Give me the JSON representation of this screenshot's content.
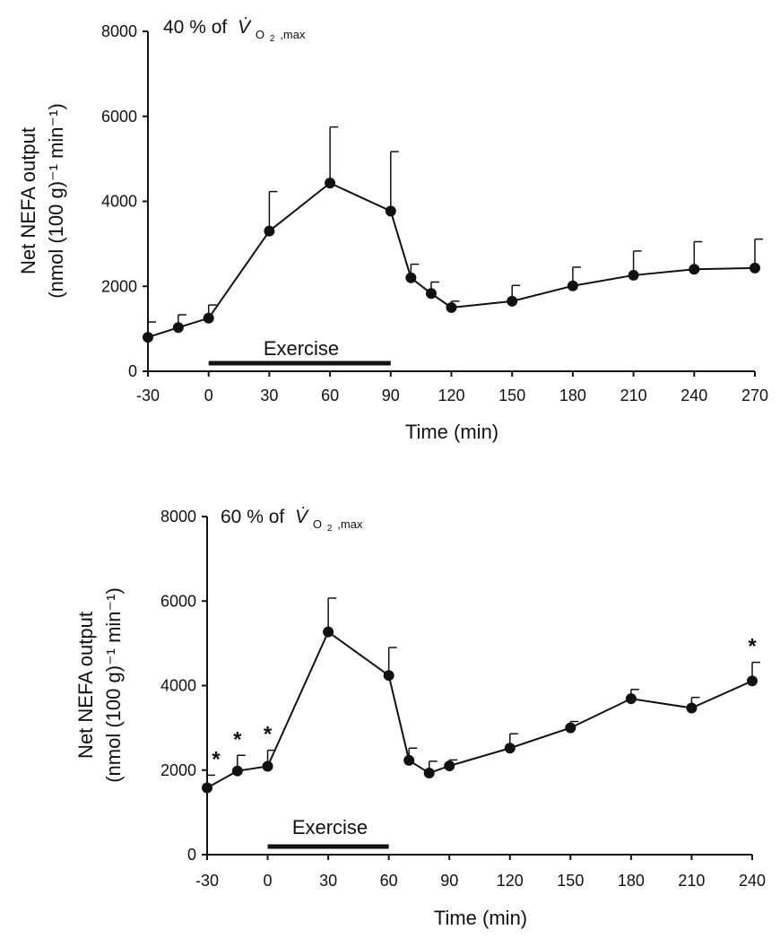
{
  "chart_data": [
    {
      "type": "line",
      "title_prefix": "40 % of",
      "title_symbol": "V̇",
      "title_subscript_main": "O",
      "title_subscript_sub": "2",
      "title_subscript_suffix": ",max",
      "xlabel": "Time (min)",
      "ylabel_line1": "Net NEFA output",
      "ylabel_line2": "(nmol (100 g)⁻¹ min⁻¹)",
      "x_ticks": [
        -30,
        0,
        30,
        60,
        90,
        120,
        150,
        180,
        210,
        240,
        270
      ],
      "y_ticks": [
        0,
        2000,
        4000,
        6000,
        8000
      ],
      "xlim": [
        -30,
        270
      ],
      "ylim": [
        0,
        8000
      ],
      "exercise_label": "Exercise",
      "exercise_range": [
        0,
        90
      ],
      "series": [
        {
          "name": "Net NEFA output",
          "x": [
            -30,
            -15,
            0,
            30,
            60,
            90,
            100,
            110,
            120,
            150,
            180,
            210,
            240,
            270
          ],
          "y": [
            800,
            1030,
            1250,
            3300,
            4430,
            3770,
            2200,
            1830,
            1500,
            1650,
            2010,
            2260,
            2400,
            2430
          ],
          "err": [
            360,
            300,
            310,
            930,
            1320,
            1400,
            320,
            270,
            150,
            370,
            440,
            570,
            650,
            680
          ]
        }
      ],
      "significance_x": []
    },
    {
      "type": "line",
      "title_prefix": "60 % of",
      "title_symbol": "V̇",
      "title_subscript_main": "O",
      "title_subscript_sub": "2",
      "title_subscript_suffix": ",max",
      "xlabel": "Time (min)",
      "ylabel_line1": "Net NEFA output",
      "ylabel_line2": "(nmol (100 g)⁻¹ min⁻¹)",
      "x_ticks": [
        -30,
        0,
        30,
        60,
        90,
        120,
        150,
        180,
        210,
        240
      ],
      "y_ticks": [
        0,
        2000,
        4000,
        6000,
        8000
      ],
      "xlim": [
        -30,
        240
      ],
      "ylim": [
        0,
        8000
      ],
      "exercise_label": "Exercise",
      "exercise_range": [
        0,
        60
      ],
      "series": [
        {
          "name": "Net NEFA output",
          "x": [
            -30,
            -15,
            0,
            30,
            60,
            70,
            80,
            90,
            120,
            150,
            180,
            210,
            240
          ],
          "y": [
            1580,
            1980,
            2090,
            5270,
            4240,
            2230,
            1930,
            2100,
            2520,
            3000,
            3690,
            3470,
            4110
          ],
          "err": [
            300,
            370,
            380,
            800,
            660,
            290,
            280,
            140,
            340,
            150,
            220,
            250,
            440
          ]
        }
      ],
      "significance_x": [
        -30,
        -15,
        0,
        240
      ],
      "significance_symbol": "*"
    }
  ]
}
